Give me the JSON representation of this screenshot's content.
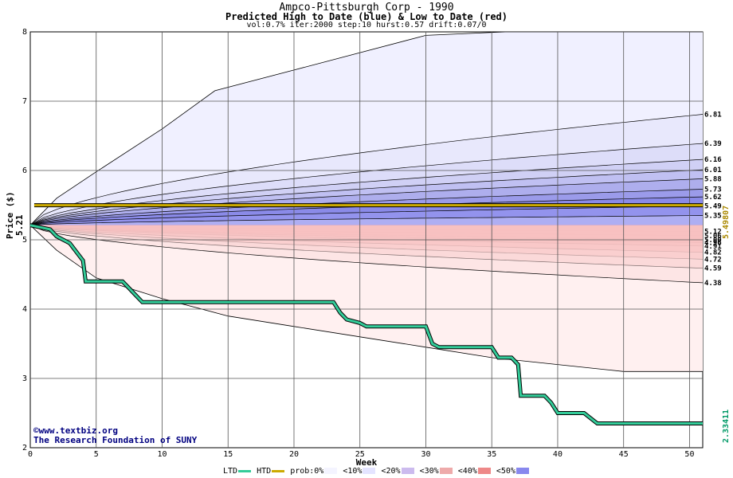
{
  "header": {
    "title": "Ampco-Pittsburgh Corp - 1990",
    "subtitle": "Predicted High to Date (blue) &  Low to Date (red)",
    "params": "vol:0.7% iter:2000 step:10 hurst:0.57 drift:0.07/0"
  },
  "footer": {
    "credit_site": "www.textbiz.org",
    "credit_org": "The Research Foundation of SUNY"
  },
  "legend": {
    "ltd": "LTD",
    "htd": "HTD",
    "prob": "prob:0%",
    "b10": "<10%",
    "b20": "<20%",
    "b30": "<30%",
    "b40": "<40%",
    "b50": "<50%",
    "colors": {
      "ltd": "#33cc99",
      "htd": "#ccaa00"
    }
  },
  "chart_data": {
    "type": "line",
    "xlabel": "Week",
    "ylabel": "Price ($)",
    "xlim": [
      0,
      51
    ],
    "ylim": [
      2,
      8
    ],
    "x_ticks": [
      0,
      5,
      10,
      15,
      20,
      25,
      30,
      35,
      40,
      45,
      50
    ],
    "y_ticks": [
      2,
      3,
      4,
      5,
      6,
      7,
      8
    ],
    "start_price": 5.21,
    "start_label": "5.21",
    "htd_right_label": "5.49807",
    "ltd_right_label": "2.33411",
    "htd_level": 5.498,
    "upper_quantile_ends": [
      6.81,
      6.39,
      6.16,
      6.01,
      5.88,
      5.73,
      5.62,
      5.49,
      5.35
    ],
    "upper_labels": [
      "6.81",
      "6.39",
      "6.16",
      "6.01",
      "5.88",
      "5.73",
      "5.62",
      "5.49",
      "5.35"
    ],
    "lower_quantile_ends": [
      5.12,
      5.06,
      5.0,
      4.96,
      4.91,
      4.82,
      4.72,
      4.59,
      4.38
    ],
    "lower_labels": [
      "5.12",
      "5.06",
      "5.00",
      "4.96",
      "4.91",
      "4.82",
      "4.72",
      "4.59",
      "4.38"
    ],
    "upper_envelope": [
      [
        0,
        5.21
      ],
      [
        2,
        5.6
      ],
      [
        5,
        5.98
      ],
      [
        10,
        6.6
      ],
      [
        14,
        7.15
      ],
      [
        20,
        7.45
      ],
      [
        25,
        7.7
      ],
      [
        30,
        7.95
      ],
      [
        36,
        8.0
      ],
      [
        51,
        8.0
      ]
    ],
    "lower_envelope": [
      [
        0,
        5.21
      ],
      [
        2,
        4.85
      ],
      [
        5,
        4.45
      ],
      [
        10,
        4.15
      ],
      [
        15,
        3.9
      ],
      [
        20,
        3.75
      ],
      [
        25,
        3.6
      ],
      [
        30,
        3.45
      ],
      [
        35,
        3.3
      ],
      [
        40,
        3.2
      ],
      [
        45,
        3.1
      ],
      [
        51,
        3.1
      ]
    ],
    "ltd_series": [
      [
        0,
        5.21
      ],
      [
        1.5,
        5.15
      ],
      [
        2,
        5.05
      ],
      [
        3,
        4.95
      ],
      [
        4,
        4.7
      ],
      [
        4.2,
        4.4
      ],
      [
        7,
        4.4
      ],
      [
        7.5,
        4.3
      ],
      [
        8,
        4.2
      ],
      [
        8.5,
        4.1
      ],
      [
        23,
        4.1
      ],
      [
        23.5,
        3.95
      ],
      [
        24,
        3.85
      ],
      [
        25,
        3.8
      ],
      [
        25.5,
        3.75
      ],
      [
        30,
        3.75
      ],
      [
        30.5,
        3.5
      ],
      [
        31,
        3.45
      ],
      [
        35,
        3.45
      ],
      [
        35.5,
        3.3
      ],
      [
        36.5,
        3.3
      ],
      [
        37,
        3.2
      ],
      [
        37.2,
        2.75
      ],
      [
        39,
        2.75
      ],
      [
        39.5,
        2.65
      ],
      [
        40,
        2.5
      ],
      [
        42,
        2.5
      ],
      [
        43,
        2.35
      ],
      [
        51,
        2.35
      ]
    ]
  }
}
